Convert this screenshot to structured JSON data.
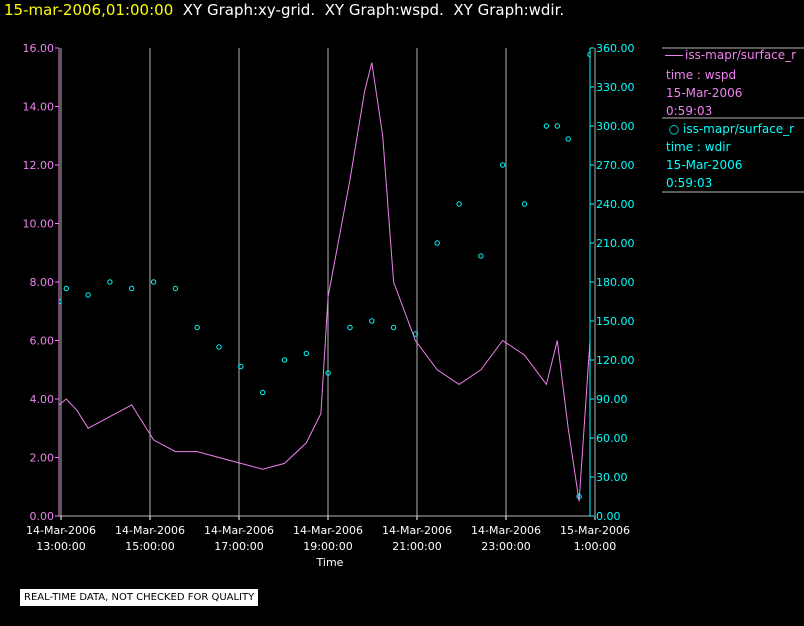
{
  "header": {
    "timestamp": "15-mar-2006,01:00:00",
    "titles": [
      "XY Graph:xy-grid.",
      "XY Graph:wspd.",
      "XY Graph:wdir."
    ]
  },
  "legend": {
    "series1_name": "iss-mapr/surface_r",
    "series1_var": "time : wspd",
    "series1_date": "15-Mar-2006",
    "series1_time": "0:59:03",
    "series2_name": "iss-mapr/surface_r",
    "series2_var": "time : wdir",
    "series2_date": "15-Mar-2006",
    "series2_time": "0:59:03"
  },
  "footer_badge": "REAL-TIME DATA, NOT CHECKED FOR QUALITY",
  "colors": {
    "wspd": "#ee82ee",
    "wdir": "#00ffff",
    "grid": "#b4b4b4",
    "timestamp": "#ffff00",
    "title": "#ffffff",
    "background": "#000000"
  },
  "chart_data": {
    "type": "line",
    "xlabel": "Time",
    "x_ticks": [
      {
        "date": "14-Mar-2006",
        "time": "13:00:00"
      },
      {
        "date": "14-Mar-2006",
        "time": "15:00:00"
      },
      {
        "date": "14-Mar-2006",
        "time": "17:00:00"
      },
      {
        "date": "14-Mar-2006",
        "time": "19:00:00"
      },
      {
        "date": "14-Mar-2006",
        "time": "21:00:00"
      },
      {
        "date": "14-Mar-2006",
        "time": "23:00:00"
      },
      {
        "date": "15-Mar-2006",
        "time": "1:00:00"
      }
    ],
    "xlim": [
      "2006-03-14 12:50",
      "2006-03-15 01:00"
    ],
    "vertical_grid": true,
    "y_left": {
      "ticks": [
        "0.00",
        "2.00",
        "4.00",
        "6.00",
        "8.00",
        "10.00",
        "12.00",
        "14.00",
        "16.00"
      ],
      "ylim": [
        0,
        16
      ]
    },
    "y_right": {
      "ticks": [
        "0.00",
        "30.00",
        "60.00",
        "90.00",
        "120.00",
        "150.00",
        "180.00",
        "210.00",
        "240.00",
        "270.00",
        "300.00",
        "330.00",
        "360.00"
      ],
      "ylim": [
        0,
        360
      ]
    },
    "series": [
      {
        "axis": "left",
        "style": "line",
        "x": [
          "2006-03-14 12:50",
          "2006-03-14 13:00",
          "2006-03-14 13:15",
          "2006-03-14 13:30",
          "2006-03-14 14:00",
          "2006-03-14 14:30",
          "2006-03-14 15:00",
          "2006-03-14 15:30",
          "2006-03-14 16:00",
          "2006-03-14 16:30",
          "2006-03-14 17:00",
          "2006-03-14 17:30",
          "2006-03-14 18:00",
          "2006-03-14 18:30",
          "2006-03-14 18:50",
          "2006-03-14 19:00",
          "2006-03-14 19:30",
          "2006-03-14 19:50",
          "2006-03-14 20:00",
          "2006-03-14 20:15",
          "2006-03-14 20:30",
          "2006-03-14 21:00",
          "2006-03-14 21:30",
          "2006-03-14 22:00",
          "2006-03-14 22:30",
          "2006-03-14 23:00",
          "2006-03-14 23:30",
          "2006-03-15 00:00",
          "2006-03-15 00:15",
          "2006-03-15 00:30",
          "2006-03-15 00:45",
          "2006-03-15 01:00"
        ],
        "y": [
          3.8,
          4.0,
          3.6,
          3.0,
          3.4,
          3.8,
          2.6,
          2.2,
          2.2,
          2.0,
          1.8,
          1.6,
          1.8,
          2.5,
          3.5,
          7.5,
          11.5,
          14.5,
          15.5,
          13.0,
          8.0,
          6.0,
          5.0,
          4.5,
          5.0,
          6.0,
          5.5,
          4.5,
          6.0,
          3.0,
          0.5,
          6.0
        ]
      },
      {
        "axis": "right",
        "style": "points",
        "x": [
          "2006-03-14 12:50",
          "2006-03-14 13:00",
          "2006-03-14 13:30",
          "2006-03-14 14:00",
          "2006-03-14 14:30",
          "2006-03-14 15:00",
          "2006-03-14 15:30",
          "2006-03-14 16:00",
          "2006-03-14 16:30",
          "2006-03-14 17:00",
          "2006-03-14 17:30",
          "2006-03-14 18:00",
          "2006-03-14 18:30",
          "2006-03-14 19:00",
          "2006-03-14 19:30",
          "2006-03-14 20:00",
          "2006-03-14 20:30",
          "2006-03-14 21:00",
          "2006-03-14 21:30",
          "2006-03-14 22:00",
          "2006-03-14 22:30",
          "2006-03-14 23:00",
          "2006-03-14 23:30",
          "2006-03-15 00:00",
          "2006-03-15 00:15",
          "2006-03-15 00:30",
          "2006-03-15 00:45",
          "2006-03-15 01:00"
        ],
        "y": [
          165,
          175,
          170,
          180,
          175,
          180,
          175,
          145,
          130,
          115,
          95,
          120,
          125,
          110,
          145,
          150,
          145,
          140,
          210,
          240,
          200,
          270,
          240,
          300,
          300,
          290,
          15,
          355
        ]
      }
    ]
  }
}
